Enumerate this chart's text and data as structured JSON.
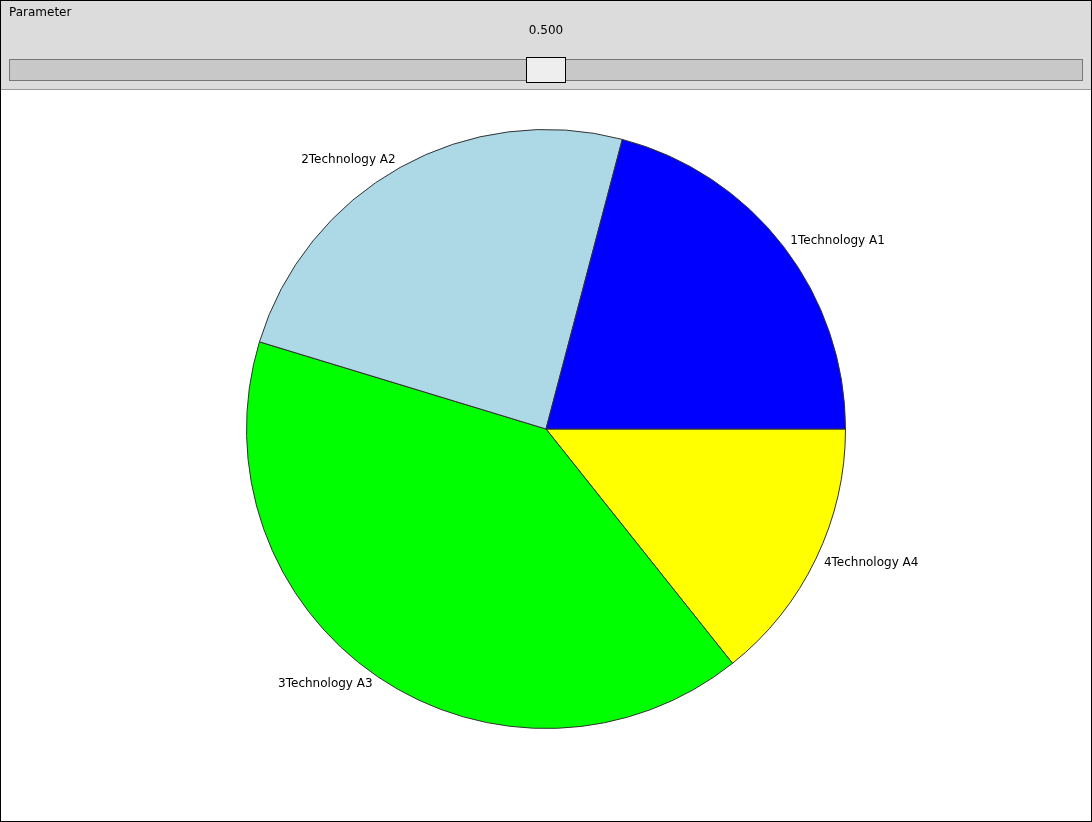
{
  "chart_data": {
    "type": "pie",
    "categories": [
      "1Technology A1",
      "2Technology A2",
      "3Technology A3",
      "4Technology A4"
    ],
    "values": [
      20.9,
      24.4,
      40.4,
      14.3
    ],
    "colors": [
      "#0000ff",
      "#add8e6",
      "#00ff00",
      "#ffff00"
    ],
    "annotations": [
      "Parameter",
      "0.500"
    ],
    "legend": false
  }
}
